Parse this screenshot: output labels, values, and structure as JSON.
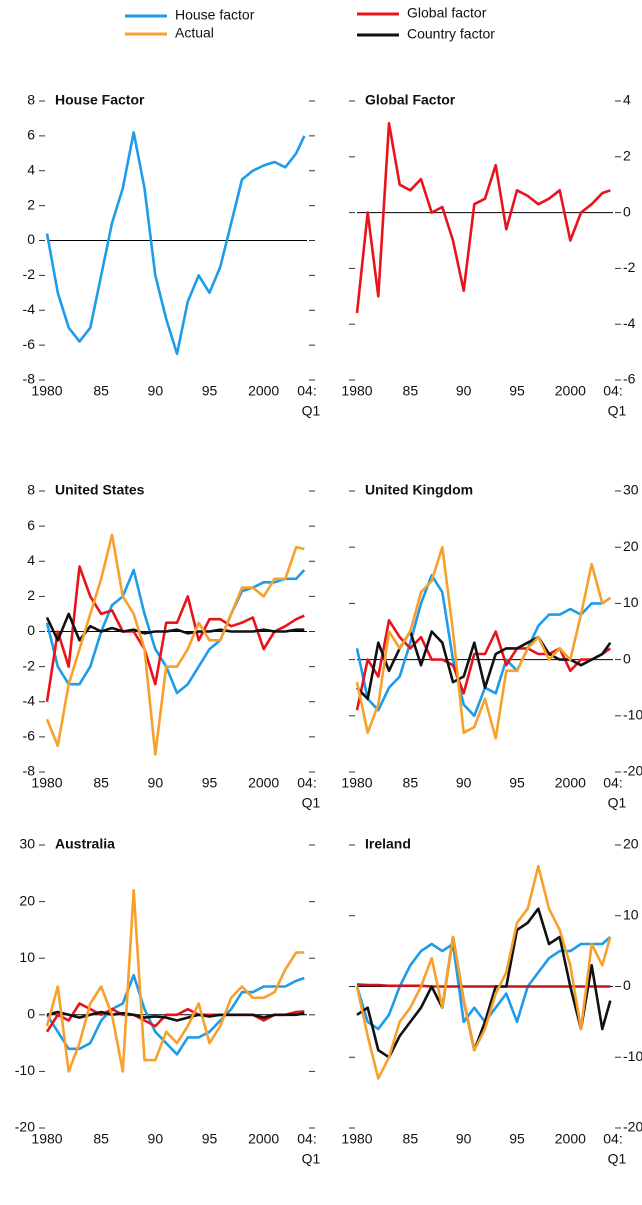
{
  "chart_data": [
    {
      "type": "line",
      "title": "House Factor",
      "yaxis_side": "left",
      "x": [
        1980,
        1981,
        1982,
        1983,
        1984,
        1985,
        1986,
        1987,
        1988,
        1989,
        1990,
        1991,
        1992,
        1993,
        1994,
        1995,
        1996,
        1997,
        1998,
        1999,
        2000,
        2001,
        2002,
        2003,
        2003.75
      ],
      "xlim": [
        1980,
        2004
      ],
      "xticks": [
        1980,
        {
          "value": 1985,
          "label": "85"
        },
        {
          "value": 1990,
          "label": "90"
        },
        {
          "value": 1995,
          "label": "95"
        },
        2000,
        {
          "value": 2004,
          "label": "04:"
        }
      ],
      "xtick_note": "Q1",
      "ylim": [
        -8,
        8
      ],
      "yticks": [
        -8,
        -6,
        -4,
        -2,
        0,
        2,
        4,
        6,
        8
      ],
      "series": [
        {
          "name": "House factor",
          "color": "#1e9be9",
          "values": [
            0.4,
            -3,
            -5,
            -5.8,
            -5,
            -2,
            1,
            3,
            6.2,
            3,
            -2,
            -4.5,
            -6.5,
            -3.5,
            -2,
            -3,
            -1.5,
            1,
            3.5,
            4,
            4.3,
            4.5,
            4.2,
            5,
            6
          ]
        }
      ]
    },
    {
      "type": "line",
      "title": "Global Factor",
      "yaxis_side": "right",
      "x": [
        1980,
        1981,
        1982,
        1983,
        1984,
        1985,
        1986,
        1987,
        1988,
        1989,
        1990,
        1991,
        1992,
        1993,
        1994,
        1995,
        1996,
        1997,
        1998,
        1999,
        2000,
        2001,
        2002,
        2003,
        2003.75
      ],
      "xlim": [
        1980,
        2004
      ],
      "xticks": [
        1980,
        {
          "value": 1985,
          "label": "85"
        },
        {
          "value": 1990,
          "label": "90"
        },
        {
          "value": 1995,
          "label": "95"
        },
        2000,
        {
          "value": 2004,
          "label": "04:"
        }
      ],
      "xtick_note": "Q1",
      "ylim": [
        -6,
        4
      ],
      "yticks": [
        -6,
        -4,
        -2,
        0,
        2,
        4
      ],
      "series": [
        {
          "name": "Global factor",
          "color": "#e8141b",
          "values": [
            -3.6,
            0,
            -3,
            3.2,
            1,
            0.8,
            1.2,
            0,
            0.2,
            -1,
            -2.8,
            0.3,
            0.5,
            1.7,
            -0.6,
            0.8,
            0.6,
            0.3,
            0.5,
            0.8,
            -1,
            0,
            0.3,
            0.7,
            0.8
          ]
        }
      ]
    },
    {
      "type": "line",
      "title": "United States",
      "yaxis_side": "left",
      "x": [
        1980,
        1981,
        1982,
        1983,
        1984,
        1985,
        1986,
        1987,
        1988,
        1989,
        1990,
        1991,
        1992,
        1993,
        1994,
        1995,
        1996,
        1997,
        1998,
        1999,
        2000,
        2001,
        2002,
        2003,
        2003.75
      ],
      "xlim": [
        1980,
        2004
      ],
      "xticks": [
        1980,
        {
          "value": 1985,
          "label": "85"
        },
        {
          "value": 1990,
          "label": "90"
        },
        {
          "value": 1995,
          "label": "95"
        },
        2000,
        {
          "value": 2004,
          "label": "04:"
        }
      ],
      "xtick_note": "Q1",
      "ylim": [
        -8,
        8
      ],
      "yticks": [
        -8,
        -6,
        -4,
        -2,
        0,
        2,
        4,
        6,
        8
      ],
      "series": [
        {
          "name": "House factor",
          "color": "#1e9be9",
          "values": [
            0.5,
            -2,
            -3,
            -3,
            -2,
            0,
            1.5,
            2,
            3.5,
            1,
            -1,
            -2,
            -3.5,
            -3,
            -2,
            -1,
            -0.5,
            1,
            2.3,
            2.5,
            2.8,
            2.8,
            3,
            3,
            3.5
          ]
        },
        {
          "name": "Global factor",
          "color": "#e8141b",
          "values": [
            -4,
            0,
            -2,
            3.7,
            2,
            1,
            1.2,
            0,
            0,
            -1,
            -3,
            0.5,
            0.5,
            2,
            -0.5,
            0.7,
            0.7,
            0.3,
            0.5,
            0.8,
            -1,
            0,
            0.3,
            0.7,
            0.9
          ]
        },
        {
          "name": "Country factor",
          "color": "#111111",
          "values": [
            0.8,
            -0.5,
            1,
            -0.5,
            0.3,
            0,
            0.2,
            0,
            0.1,
            -0.1,
            0,
            0,
            0.1,
            -0.1,
            0,
            0,
            0.1,
            0,
            0,
            0,
            0.1,
            0,
            0,
            0.1,
            0.1
          ]
        },
        {
          "name": "Actual",
          "color": "#f7a02c",
          "values": [
            -5,
            -6.5,
            -3,
            -1,
            1,
            3,
            5.5,
            2,
            1,
            -1,
            -7,
            -2,
            -2,
            -1,
            0.5,
            -0.5,
            -0.5,
            1,
            2.5,
            2.5,
            2,
            3,
            3,
            4.8,
            4.7
          ]
        }
      ]
    },
    {
      "type": "line",
      "title": "United Kingdom",
      "yaxis_side": "right",
      "x": [
        1980,
        1981,
        1982,
        1983,
        1984,
        1985,
        1986,
        1987,
        1988,
        1989,
        1990,
        1991,
        1992,
        1993,
        1994,
        1995,
        1996,
        1997,
        1998,
        1999,
        2000,
        2001,
        2002,
        2003,
        2003.75
      ],
      "xlim": [
        1980,
        2004
      ],
      "xticks": [
        1980,
        {
          "value": 1985,
          "label": "85"
        },
        {
          "value": 1990,
          "label": "90"
        },
        {
          "value": 1995,
          "label": "95"
        },
        2000,
        {
          "value": 2004,
          "label": "04:"
        }
      ],
      "xtick_note": "Q1",
      "ylim": [
        -20,
        30
      ],
      "yticks": [
        -20,
        -10,
        0,
        10,
        20,
        30
      ],
      "series": [
        {
          "name": "House factor",
          "color": "#1e9be9",
          "values": [
            2,
            -7,
            -9,
            -5,
            -3,
            3,
            10,
            15,
            12,
            0,
            -8,
            -10,
            -5,
            -6,
            0,
            -2,
            2,
            6,
            8,
            8,
            9,
            8,
            10,
            10,
            11
          ]
        },
        {
          "name": "Global factor",
          "color": "#e8141b",
          "values": [
            -9,
            0,
            -3,
            7,
            4,
            2,
            4,
            0,
            0,
            -1,
            -6,
            1,
            1,
            5,
            -1,
            2,
            2,
            1,
            1,
            2,
            -2,
            0,
            0,
            1,
            2
          ]
        },
        {
          "name": "Country factor",
          "color": "#111111",
          "values": [
            -5,
            -7,
            3,
            -2,
            2,
            5,
            -1,
            5,
            3,
            -4,
            -3,
            3,
            -5,
            1,
            2,
            2,
            3,
            4,
            1,
            0,
            0,
            -1,
            0,
            1,
            3
          ]
        },
        {
          "name": "Actual",
          "color": "#f7a02c",
          "values": [
            -4,
            -13,
            -8,
            5,
            2,
            5,
            12,
            14,
            20,
            5,
            -13,
            -12,
            -7,
            -14,
            -2,
            -2,
            2,
            4,
            0,
            2,
            0,
            8,
            17,
            10,
            11
          ]
        }
      ]
    },
    {
      "type": "line",
      "title": "Australia",
      "yaxis_side": "left",
      "x": [
        1980,
        1981,
        1982,
        1983,
        1984,
        1985,
        1986,
        1987,
        1988,
        1989,
        1990,
        1991,
        1992,
        1993,
        1994,
        1995,
        1996,
        1997,
        1998,
        1999,
        2000,
        2001,
        2002,
        2003,
        2003.75
      ],
      "xlim": [
        1980,
        2004
      ],
      "xticks": [
        1980,
        {
          "value": 1985,
          "label": "85"
        },
        {
          "value": 1990,
          "label": "90"
        },
        {
          "value": 1995,
          "label": "95"
        },
        2000,
        {
          "value": 2004,
          "label": "04:"
        }
      ],
      "xtick_note": "Q1",
      "ylim": [
        -20,
        30
      ],
      "yticks": [
        -20,
        -10,
        0,
        10,
        20,
        30
      ],
      "series": [
        {
          "name": "House factor",
          "color": "#1e9be9",
          "values": [
            0,
            -3,
            -6,
            -6,
            -5,
            -1,
            1,
            2,
            7,
            1,
            -3,
            -5,
            -7,
            -4,
            -4,
            -3,
            -1,
            1,
            4,
            4,
            5,
            5,
            5,
            6,
            6.5
          ]
        },
        {
          "name": "Global factor",
          "color": "#e8141b",
          "values": [
            -3,
            0,
            -1,
            2,
            1,
            0,
            1,
            0,
            0,
            -1,
            -2,
            0,
            0,
            1,
            0,
            0,
            0,
            0,
            0,
            0,
            -1,
            0,
            0,
            0.5,
            0.6
          ]
        },
        {
          "name": "Country factor",
          "color": "#111111",
          "values": [
            0,
            0.5,
            0,
            -0.5,
            0,
            0.5,
            0,
            0.3,
            0,
            -0.5,
            -0.3,
            -0.5,
            -1,
            -0.5,
            0,
            -0.3,
            0,
            0,
            0,
            0,
            -0.5,
            0,
            0,
            0,
            0.3
          ]
        },
        {
          "name": "Actual",
          "color": "#f7a02c",
          "values": [
            -2,
            5,
            -10,
            -5,
            2,
            5,
            0,
            -10,
            22,
            -8,
            -8,
            -3,
            -5,
            -2,
            2,
            -5,
            -2,
            3,
            5,
            3,
            3,
            4,
            8,
            11,
            11
          ]
        }
      ]
    },
    {
      "type": "line",
      "title": "Ireland",
      "yaxis_side": "right",
      "x": [
        1980,
        1981,
        1982,
        1983,
        1984,
        1985,
        1986,
        1987,
        1988,
        1989,
        1990,
        1991,
        1992,
        1993,
        1994,
        1995,
        1996,
        1997,
        1998,
        1999,
        2000,
        2001,
        2002,
        2003,
        2003.75
      ],
      "xlim": [
        1980,
        2004
      ],
      "xticks": [
        1980,
        {
          "value": 1985,
          "label": "85"
        },
        {
          "value": 1990,
          "label": "90"
        },
        {
          "value": 1995,
          "label": "95"
        },
        2000,
        {
          "value": 2004,
          "label": "04:"
        }
      ],
      "xtick_note": "Q1",
      "ylim": [
        -20,
        20
      ],
      "yticks": [
        -20,
        -10,
        0,
        10,
        20
      ],
      "series": [
        {
          "name": "House factor",
          "color": "#1e9be9",
          "values": [
            0,
            -5,
            -6,
            -4,
            0,
            3,
            5,
            6,
            5,
            6,
            -5,
            -3,
            -5,
            -3,
            -1,
            -5,
            0,
            2,
            4,
            5,
            5,
            6,
            6,
            6,
            7
          ]
        },
        {
          "name": "Global factor",
          "color": "#c8141b",
          "values": [
            0.3,
            0.2,
            0.2,
            0.1,
            0.1,
            0.1,
            0.1,
            0,
            0,
            0,
            0,
            0,
            0,
            0,
            0,
            0,
            0,
            0,
            0,
            0,
            0,
            0,
            0,
            0,
            0
          ]
        },
        {
          "name": "Country factor",
          "color": "#111111",
          "values": [
            -4,
            -3,
            -9,
            -10,
            -7,
            -5,
            -3,
            0,
            -3,
            7,
            -2,
            -9,
            -5,
            0,
            0,
            8,
            9,
            11,
            6,
            7,
            0,
            -6,
            3,
            -6,
            -2
          ]
        },
        {
          "name": "Actual",
          "color": "#f7a02c",
          "values": [
            0,
            -7,
            -13,
            -10,
            -5,
            -3,
            0,
            4,
            -3,
            7,
            -2,
            -9,
            -6,
            -1,
            2,
            9,
            11,
            17,
            11,
            8,
            3,
            -6,
            6,
            3,
            7
          ]
        }
      ]
    }
  ]
}
